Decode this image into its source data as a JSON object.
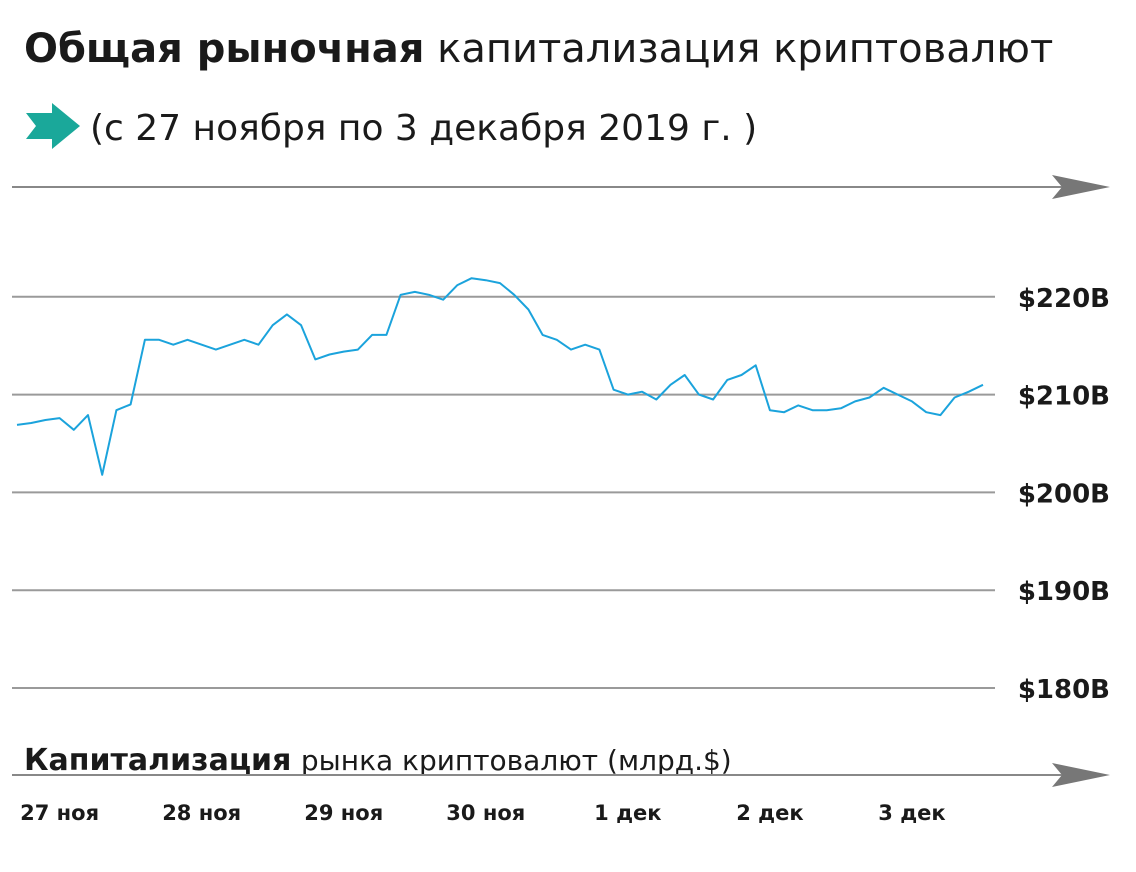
{
  "chart_data": {
    "type": "line",
    "title": [
      "Общая рыночная",
      "капитализация криптовалют"
    ],
    "subtitle": "(с 27 ноября по 3 декабря 2019 г. )",
    "ylabel": [
      "Капитализация",
      "рынка криптовалют (млрд.$)"
    ],
    "categories": [
      null,
      null,
      null,
      "27 ноя",
      null,
      null,
      null,
      null,
      null,
      null,
      null,
      null,
      null,
      "28 ноя",
      null,
      null,
      null,
      null,
      null,
      null,
      null,
      null,
      null,
      "29 ноя",
      null,
      null,
      null,
      null,
      null,
      null,
      null,
      null,
      null,
      "30 ноя",
      null,
      null,
      null,
      null,
      null,
      null,
      null,
      null,
      null,
      "1 дек",
      null,
      null,
      null,
      null,
      null,
      null,
      null,
      null,
      null,
      "2 дек",
      null,
      null,
      null,
      null,
      null,
      null,
      null,
      null,
      null,
      "3 дек",
      null,
      null,
      null,
      null,
      null
    ],
    "values": [
      206.9,
      207.1,
      207.4,
      207.6,
      206.4,
      207.9,
      201.8,
      208.4,
      209.0,
      215.6,
      215.6,
      215.1,
      215.6,
      215.1,
      214.6,
      215.1,
      215.6,
      215.1,
      217.1,
      218.2,
      217.1,
      213.6,
      214.1,
      214.4,
      214.6,
      216.1,
      216.1,
      220.2,
      220.5,
      220.2,
      219.7,
      221.2,
      221.9,
      221.7,
      221.4,
      220.2,
      218.7,
      216.1,
      215.6,
      214.6,
      215.1,
      214.6,
      210.5,
      210.0,
      210.3,
      209.5,
      211.0,
      212.0,
      210.0,
      209.5,
      211.5,
      212.0,
      213.0,
      208.4,
      208.2,
      208.9,
      208.4,
      208.4,
      208.6,
      209.3,
      209.7,
      210.7,
      210.0,
      209.3,
      208.2,
      207.9,
      209.7,
      210.3,
      211.0
    ],
    "color": "#1ba3dc",
    "ylim": [
      180,
      230
    ],
    "yticks": [
      {
        "value": 180,
        "label": "$180B"
      },
      {
        "value": 190,
        "label": "$190B"
      },
      {
        "value": 200,
        "label": "$200B"
      },
      {
        "value": 210,
        "label": "$210B"
      },
      {
        "value": 220,
        "label": "$220B"
      }
    ],
    "grid": true
  }
}
